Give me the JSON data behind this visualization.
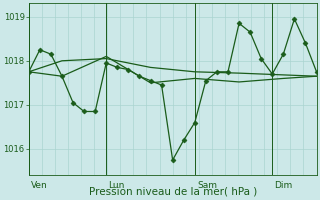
{
  "bg_color": "#cce8e8",
  "plot_bg_color": "#cce8e8",
  "grid_color": "#aad4d0",
  "line_color": "#1a5c1a",
  "xlabel": "Pression niveau de la mer( hPa )",
  "ylim": [
    1015.4,
    1019.3
  ],
  "yticks": [
    1016,
    1017,
    1018,
    1019
  ],
  "ytick_fontsize": 6.0,
  "xlabel_fontsize": 7.5,
  "day_label_fontsize": 6.5,
  "day_labels": [
    "Ven",
    "Lun",
    "Sam",
    "Dim"
  ],
  "num_grid_cols": 22,
  "series1_x": [
    0,
    1,
    2,
    3,
    4,
    5,
    6,
    7,
    8,
    9,
    10,
    11,
    12,
    13,
    14,
    15,
    16,
    17,
    18,
    19,
    20,
    21,
    22,
    23,
    24,
    25,
    26
  ],
  "series1_y": [
    1017.75,
    1018.25,
    1018.15,
    1017.65,
    1017.05,
    1016.85,
    1016.85,
    1017.95,
    1017.85,
    1017.8,
    1017.65,
    1017.55,
    1017.45,
    1015.75,
    1016.2,
    1016.6,
    1017.55,
    1017.75,
    1017.75,
    1018.85,
    1018.65,
    1018.05,
    1017.7,
    1018.15,
    1018.95,
    1018.4,
    1017.75
  ],
  "series2_x": [
    0,
    3,
    7,
    11,
    15,
    19,
    23,
    26
  ],
  "series2_y": [
    1017.75,
    1018.0,
    1018.05,
    1017.85,
    1017.75,
    1017.72,
    1017.68,
    1017.65
  ],
  "series3_x": [
    0,
    3,
    7,
    11,
    15,
    19,
    23,
    26
  ],
  "series3_y": [
    1017.75,
    1017.65,
    1018.1,
    1017.5,
    1017.6,
    1017.52,
    1017.6,
    1017.65
  ]
}
